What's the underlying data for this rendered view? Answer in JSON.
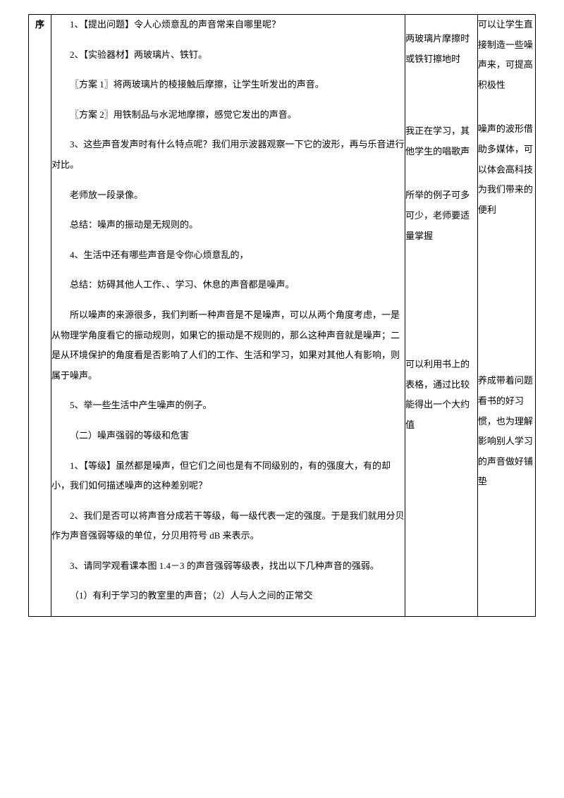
{
  "leftHeader": "序",
  "main": {
    "p1": "1、【提出问题】令人心烦意乱的声音常来自哪里呢？",
    "p2": "2、【实验器材】两玻璃片、铁钉。",
    "p3": "〖方案 1〗将两玻璃片的棱接触后摩擦，让学生听发出的声音。",
    "p4": "〖方案 2〗用铁制品与水泥地摩擦，感觉它发出的声音。",
    "p5": "3、这些声音发声时有什么特点呢？我们用示波器观察一下它的波形，再与乐音进行对比。",
    "p6": "老师放一段录像。",
    "p7": "总结：噪声的振动是无规则的。",
    "p8": "4、生活中还有哪些声音是令你心烦意乱的，",
    "p9": "总结：妨碍其他人工作、、学习、休息的声音都是噪声。",
    "p10": "所以噪声的来源很多，我们判断一种声音是不是噪声，可以从两个角度考虑，一是从物理学角度看它的振动规则，如果它的振动是不规则的，那么这种声音就是噪声；二是从环境保护的角度看是否影响了人们的工作、生活和学习，如果对其他人有影响，则属于噪声。",
    "p11": "5、举一些生活中产生噪声的例子。",
    "p12": "（二）噪声强弱的等级和危害",
    "p13": "1、【等级】虽然都是噪声，但它们之间也是有不同级别的，有的强度大，有的却小，我们如何描述噪声的这种差别呢？",
    "p14": "2、我们是否可以将声音分成若干等级，每一级代表一定的强度。于是我们就用分贝作为声音强弱等级的单位，分贝用符号 dB 来表示。",
    "p15": "3、请同学观看课本图 1.4－3 的声音强弱等级表，找出以下几种声音的强弱。",
    "p16": "（1）有利于学习的教室里的声音；（2）人与人之间的正常交"
  },
  "mid": {
    "b1": "两玻璃片摩擦时或铁钉擦地时",
    "b2": "我正在学习，其他学生的唱歌声",
    "b3": "所举的例子可多可少，老师要适量掌握",
    "b4": "可以利用书上的表格，通过比较能得出一个大约值"
  },
  "right": {
    "b1": "可以让学生直接制造一些噪声来，可提高积极性",
    "b2": "噪声的波形借助多媒体，可以体会高科技为我们带来的便利",
    "b3": "养成带着问题看书的好习惯，也为理解影响别人学习的声音做好铺垫"
  },
  "colors": {
    "text": "#000000",
    "border": "#000000",
    "background": "#ffffff"
  }
}
